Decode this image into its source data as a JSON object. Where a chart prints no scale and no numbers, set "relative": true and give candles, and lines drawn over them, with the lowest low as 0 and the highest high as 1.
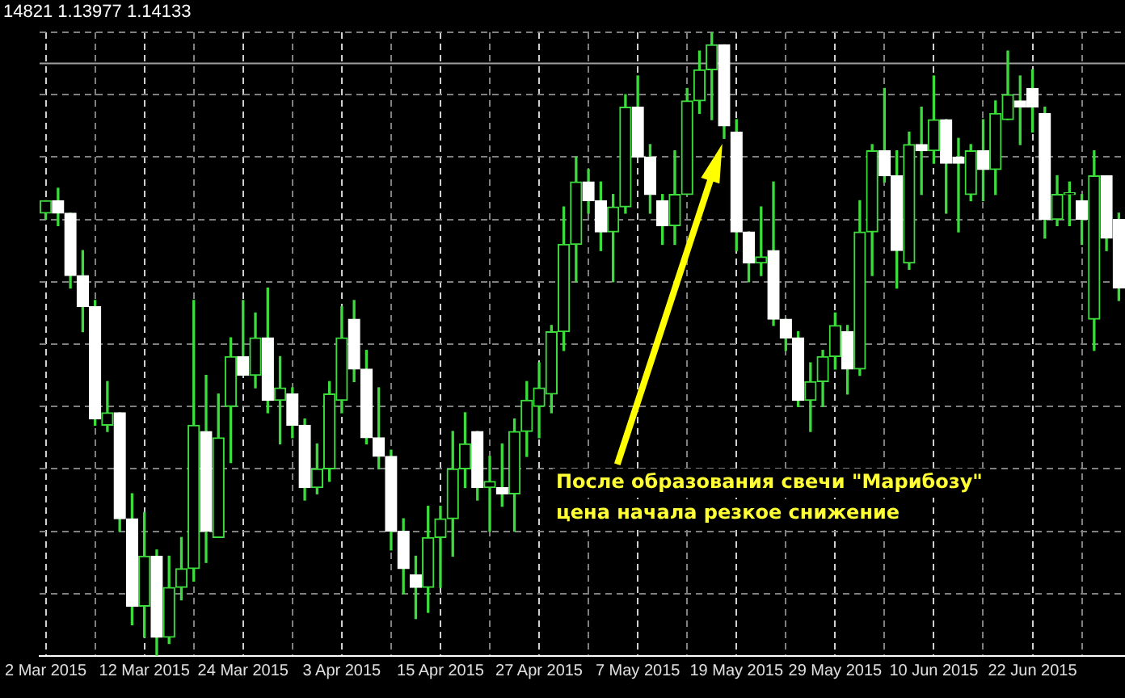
{
  "chart_data": {
    "type": "candlestick",
    "relative": true,
    "color": "#3cdc3c",
    "grid": true,
    "legend": false,
    "annotations": [
      "14821 1.13977 1.14133",
      "После образования свечи \"Марибозу\"\nцена начала резкое снижение"
    ],
    "ref_lines": [
      {
        "axis": "y",
        "value": 0.95,
        "color": "#a0a0a0"
      }
    ],
    "colors": [
      "#3cdc3c",
      "#ffffff",
      "#ffffff",
      "#ffffff",
      "#ffffff",
      "#3cdc3c",
      "#ffffff",
      "#ffffff",
      "#3cdc3c",
      "#ffffff",
      "#3cdc3c",
      "#3cdc3c",
      "#3cdc3c",
      "#ffffff",
      "#3cdc3c",
      "#3cdc3c",
      "#ffffff",
      "#3cdc3c",
      "#ffffff",
      "#3cdc3c",
      "#ffffff",
      "#ffffff",
      "#3cdc3c",
      "#3cdc3c",
      "#3cdc3c",
      "#ffffff",
      "#ffffff",
      "#ffffff",
      "#ffffff",
      "#ffffff",
      "#ffffff",
      "#3cdc3c",
      "#3cdc3c",
      "#3cdc3c",
      "#3cdc3c",
      "#ffffff",
      "#3cdc3c",
      "#ffffff",
      "#3cdc3c",
      "#3cdc3c",
      "#3cdc3c",
      "#3cdc3c",
      "#3cdc3c",
      "#3cdc3c",
      "#ffffff",
      "#ffffff",
      "#3cdc3c",
      "#3cdc3c",
      "#ffffff",
      "#ffffff",
      "#ffffff",
      "#3cdc3c",
      "#3cdc3c",
      "#3cdc3c",
      "#3cdc3c",
      "#ffffff",
      "#ffffff",
      "#ffffff",
      "#3cdc3c",
      "#ffffff",
      "#ffffff",
      "#ffffff",
      "#3cdc3c",
      "#3cdc3c",
      "#3cdc3c",
      "#ffffff",
      "#3cdc3c",
      "#3cdc3c",
      "#ffffff",
      "#ffffff",
      "#3cdc3c",
      "#ffffff",
      "#3cdc3c",
      "#ffffff",
      "#ffffff",
      "#3cdc3c",
      "#ffffff",
      "#3cdc3c",
      "#3cdc3c",
      "#ffffff",
      "#ffffff",
      "#ffffff",
      "#3cdc3c",
      "#3cdc3c",
      "#ffffff",
      "#3cdc3c",
      "#ffffff",
      "#ffffff"
    ],
    "categories": [
      "2 Mar 2015",
      null,
      null,
      null,
      null,
      null,
      null,
      null,
      "12 Mar 2015",
      null,
      null,
      null,
      null,
      null,
      null,
      null,
      "24 Mar 2015",
      null,
      null,
      null,
      null,
      null,
      null,
      null,
      "3 Apr 2015",
      null,
      null,
      null,
      null,
      null,
      null,
      null,
      "15 Apr 2015",
      null,
      null,
      null,
      null,
      null,
      null,
      null,
      "27 Apr 2015",
      null,
      null,
      null,
      null,
      null,
      null,
      null,
      "7 May 2015",
      null,
      null,
      null,
      null,
      null,
      null,
      null,
      "19 May 2015",
      null,
      null,
      null,
      null,
      null,
      null,
      null,
      "29 May 2015",
      null,
      null,
      null,
      null,
      null,
      null,
      null,
      "10 Jun 2015",
      null,
      null,
      null,
      null,
      null,
      null,
      null,
      "22 Jun 2015",
      null,
      null,
      null,
      null,
      null,
      null,
      null
    ],
    "ohlc": [
      [
        0.71,
        0.73,
        0.7,
        0.73
      ],
      [
        0.73,
        0.75,
        0.69,
        0.71
      ],
      [
        0.71,
        0.71,
        0.59,
        0.61
      ],
      [
        0.61,
        0.65,
        0.52,
        0.56
      ],
      [
        0.56,
        0.57,
        0.37,
        0.38
      ],
      [
        0.37,
        0.44,
        0.36,
        0.39
      ],
      [
        0.39,
        0.39,
        0.2,
        0.22
      ],
      [
        0.22,
        0.26,
        0.05,
        0.08
      ],
      [
        0.08,
        0.23,
        0.03,
        0.16
      ],
      [
        0.16,
        0.17,
        0,
        0.03
      ],
      [
        0.03,
        0.16,
        0.02,
        0.11
      ],
      [
        0.11,
        0.19,
        0.09,
        0.14
      ],
      [
        0.14,
        0.57,
        0.12,
        0.37
      ],
      [
        0.36,
        0.45,
        0.15,
        0.2
      ],
      [
        0.19,
        0.42,
        0.19,
        0.35
      ],
      [
        0.4,
        0.51,
        0.31,
        0.48
      ],
      [
        0.48,
        0.57,
        0.45,
        0.45
      ],
      [
        0.45,
        0.55,
        0.43,
        0.51
      ],
      [
        0.51,
        0.59,
        0.39,
        0.41
      ],
      [
        0.41,
        0.48,
        0.34,
        0.43
      ],
      [
        0.42,
        0.43,
        0.35,
        0.37
      ],
      [
        0.37,
        0.38,
        0.25,
        0.27
      ],
      [
        0.27,
        0.34,
        0.26,
        0.3
      ],
      [
        0.3,
        0.44,
        0.28,
        0.42
      ],
      [
        0.41,
        0.56,
        0.39,
        0.51
      ],
      [
        0.54,
        0.57,
        0.44,
        0.46
      ],
      [
        0.46,
        0.49,
        0.34,
        0.35
      ],
      [
        0.35,
        0.43,
        0.3,
        0.32
      ],
      [
        0.32,
        0.33,
        0.17,
        0.2
      ],
      [
        0.2,
        0.22,
        0.1,
        0.14
      ],
      [
        0.13,
        0.16,
        0.06,
        0.11
      ],
      [
        0.11,
        0.24,
        0.07,
        0.19
      ],
      [
        0.19,
        0.24,
        0.11,
        0.22
      ],
      [
        0.22,
        0.36,
        0.16,
        0.3
      ],
      [
        0.3,
        0.39,
        0.27,
        0.34
      ],
      [
        0.36,
        0.36,
        0.25,
        0.27
      ],
      [
        0.27,
        0.32,
        0.2,
        0.28
      ],
      [
        0.27,
        0.34,
        0.24,
        0.26
      ],
      [
        0.26,
        0.38,
        0.2,
        0.36
      ],
      [
        0.36,
        0.44,
        0.32,
        0.41
      ],
      [
        0.4,
        0.47,
        0.35,
        0.43
      ],
      [
        0.42,
        0.53,
        0.39,
        0.52
      ],
      [
        0.52,
        0.72,
        0.49,
        0.66
      ],
      [
        0.66,
        0.8,
        0.6,
        0.76
      ],
      [
        0.76,
        0.78,
        0.71,
        0.73
      ],
      [
        0.73,
        0.76,
        0.65,
        0.68
      ],
      [
        0.68,
        0.74,
        0.6,
        0.72
      ],
      [
        0.72,
        0.9,
        0.71,
        0.88
      ],
      [
        0.88,
        0.93,
        0.8,
        0.8
      ],
      [
        0.8,
        0.82,
        0.71,
        0.74
      ],
      [
        0.73,
        0.74,
        0.66,
        0.69
      ],
      [
        0.69,
        0.81,
        0.66,
        0.74
      ],
      [
        0.74,
        0.91,
        0.74,
        0.89
      ],
      [
        0.89,
        0.97,
        0.87,
        0.94
      ],
      [
        0.94,
        1,
        0.86,
        0.98
      ],
      [
        0.98,
        0.98,
        0.83,
        0.85
      ],
      [
        0.84,
        0.86,
        0.65,
        0.68
      ],
      [
        0.68,
        0.68,
        0.6,
        0.63
      ],
      [
        0.63,
        0.72,
        0.61,
        0.64
      ],
      [
        0.65,
        0.76,
        0.53,
        0.54
      ],
      [
        0.54,
        0.54,
        0.49,
        0.51
      ],
      [
        0.51,
        0.52,
        0.4,
        0.41
      ],
      [
        0.41,
        0.47,
        0.36,
        0.44
      ],
      [
        0.44,
        0.49,
        0.4,
        0.48
      ],
      [
        0.48,
        0.55,
        0.46,
        0.53
      ],
      [
        0.52,
        0.53,
        0.42,
        0.46
      ],
      [
        0.46,
        0.73,
        0.45,
        0.68
      ],
      [
        0.68,
        0.82,
        0.61,
        0.81
      ],
      [
        0.81,
        0.91,
        0.76,
        0.77
      ],
      [
        0.77,
        0.81,
        0.59,
        0.65
      ],
      [
        0.63,
        0.84,
        0.62,
        0.82
      ],
      [
        0.82,
        0.88,
        0.74,
        0.81
      ],
      [
        0.81,
        0.93,
        0.79,
        0.86
      ],
      [
        0.86,
        0.86,
        0.71,
        0.79
      ],
      [
        0.8,
        0.83,
        0.68,
        0.79
      ],
      [
        0.74,
        0.82,
        0.73,
        0.81
      ],
      [
        0.81,
        0.86,
        0.73,
        0.78
      ],
      [
        0.78,
        0.89,
        0.74,
        0.87
      ],
      [
        0.86,
        0.97,
        0.86,
        0.9
      ],
      [
        0.89,
        0.93,
        0.82,
        0.88
      ],
      [
        0.91,
        0.94,
        0.84,
        0.88
      ],
      [
        0.87,
        0.88,
        0.67,
        0.7
      ],
      [
        0.7,
        0.77,
        0.69,
        0.74
      ],
      [
        0.74,
        0.76,
        0.69,
        0.74
      ],
      [
        0.73,
        0.74,
        0.66,
        0.7
      ],
      [
        0.54,
        0.81,
        0.49,
        0.77
      ],
      [
        0.77,
        0.77,
        0.65,
        0.67
      ],
      [
        0.7,
        0.71,
        0.57,
        0.59
      ]
    ]
  }
}
